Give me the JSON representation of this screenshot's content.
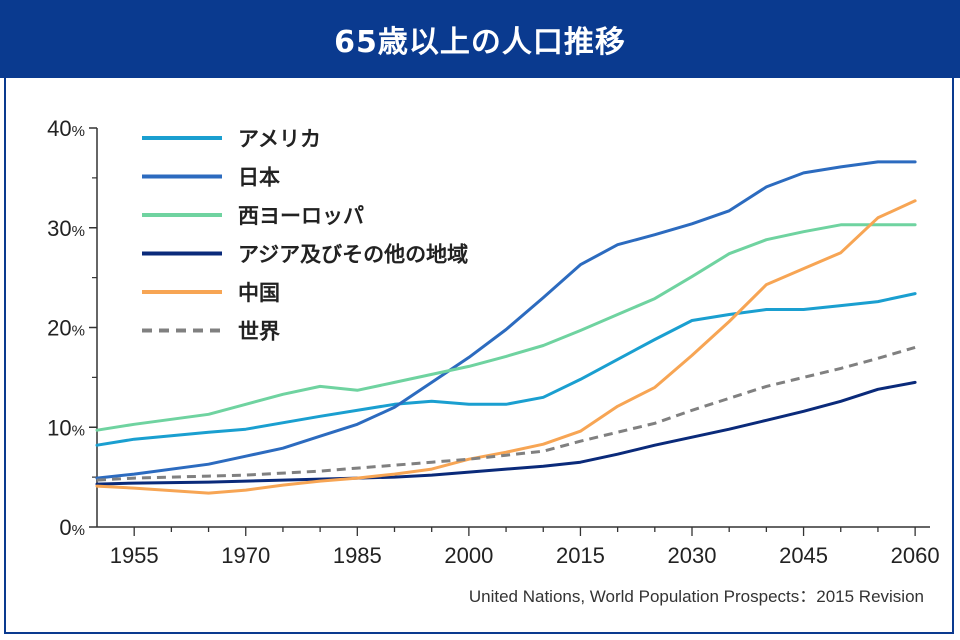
{
  "title": "65歳以上の人口推移",
  "source": "United Nations, World Population Prospects：2015 Revision",
  "chart_data": {
    "type": "line",
    "title": "65歳以上の人口推移",
    "xlabel": "",
    "ylabel": "",
    "x_ticks": [
      1955,
      1970,
      1985,
      2000,
      2015,
      2030,
      2045,
      2060
    ],
    "xlim": [
      1950,
      2062
    ],
    "y_ticks": [
      0,
      10,
      20,
      30,
      40
    ],
    "y_unit": "%",
    "ylim": [
      0,
      40
    ],
    "grid": false,
    "legend_position": "top-left",
    "series": [
      {
        "name": "アメリカ",
        "color": "#1a9fd0",
        "dash": false,
        "points": [
          [
            1950,
            8.2
          ],
          [
            1955,
            8.8
          ],
          [
            1965,
            9.5
          ],
          [
            1970,
            9.8
          ],
          [
            1980,
            11.1
          ],
          [
            1990,
            12.3
          ],
          [
            1995,
            12.6
          ],
          [
            2000,
            12.3
          ],
          [
            2005,
            12.3
          ],
          [
            2010,
            13.0
          ],
          [
            2015,
            14.8
          ],
          [
            2020,
            16.8
          ],
          [
            2025,
            18.8
          ],
          [
            2030,
            20.7
          ],
          [
            2035,
            21.3
          ],
          [
            2040,
            21.8
          ],
          [
            2045,
            21.8
          ],
          [
            2050,
            22.2
          ],
          [
            2055,
            22.6
          ],
          [
            2060,
            23.4
          ]
        ]
      },
      {
        "name": "日本",
        "color": "#2c6bbf",
        "dash": false,
        "points": [
          [
            1950,
            4.9
          ],
          [
            1955,
            5.3
          ],
          [
            1965,
            6.3
          ],
          [
            1970,
            7.1
          ],
          [
            1975,
            7.9
          ],
          [
            1980,
            9.1
          ],
          [
            1985,
            10.3
          ],
          [
            1990,
            12.0
          ],
          [
            1995,
            14.5
          ],
          [
            2000,
            17.0
          ],
          [
            2005,
            19.8
          ],
          [
            2010,
            23.0
          ],
          [
            2015,
            26.3
          ],
          [
            2020,
            28.3
          ],
          [
            2025,
            29.3
          ],
          [
            2030,
            30.4
          ],
          [
            2035,
            31.7
          ],
          [
            2040,
            34.1
          ],
          [
            2045,
            35.5
          ],
          [
            2050,
            36.1
          ],
          [
            2055,
            36.6
          ],
          [
            2060,
            36.6
          ]
        ]
      },
      {
        "name": "西ヨーロッパ",
        "color": "#6fd3a0",
        "dash": false,
        "points": [
          [
            1950,
            9.7
          ],
          [
            1955,
            10.3
          ],
          [
            1965,
            11.3
          ],
          [
            1970,
            12.3
          ],
          [
            1975,
            13.3
          ],
          [
            1980,
            14.1
          ],
          [
            1985,
            13.7
          ],
          [
            1990,
            14.5
          ],
          [
            1995,
            15.3
          ],
          [
            2000,
            16.1
          ],
          [
            2005,
            17.1
          ],
          [
            2010,
            18.2
          ],
          [
            2015,
            19.7
          ],
          [
            2020,
            21.3
          ],
          [
            2025,
            22.9
          ],
          [
            2030,
            25.1
          ],
          [
            2035,
            27.4
          ],
          [
            2040,
            28.8
          ],
          [
            2045,
            29.6
          ],
          [
            2050,
            30.3
          ],
          [
            2055,
            30.3
          ],
          [
            2060,
            30.3
          ]
        ]
      },
      {
        "name": "アジア及びその他の地域",
        "color": "#0a2a7a",
        "dash": false,
        "points": [
          [
            1950,
            4.3
          ],
          [
            1955,
            4.4
          ],
          [
            1965,
            4.5
          ],
          [
            1970,
            4.6
          ],
          [
            1975,
            4.7
          ],
          [
            1980,
            4.8
          ],
          [
            1985,
            4.9
          ],
          [
            1990,
            5.0
          ],
          [
            1995,
            5.2
          ],
          [
            2000,
            5.5
          ],
          [
            2005,
            5.8
          ],
          [
            2010,
            6.1
          ],
          [
            2015,
            6.5
          ],
          [
            2020,
            7.3
          ],
          [
            2025,
            8.2
          ],
          [
            2030,
            9.0
          ],
          [
            2035,
            9.8
          ],
          [
            2040,
            10.7
          ],
          [
            2045,
            11.6
          ],
          [
            2050,
            12.6
          ],
          [
            2055,
            13.8
          ],
          [
            2060,
            14.5
          ]
        ]
      },
      {
        "name": "中国",
        "color": "#f7a554",
        "dash": false,
        "points": [
          [
            1950,
            4.1
          ],
          [
            1955,
            3.9
          ],
          [
            1965,
            3.4
          ],
          [
            1970,
            3.7
          ],
          [
            1975,
            4.2
          ],
          [
            1980,
            4.6
          ],
          [
            1985,
            4.9
          ],
          [
            1990,
            5.3
          ],
          [
            1995,
            5.8
          ],
          [
            2000,
            6.8
          ],
          [
            2005,
            7.5
          ],
          [
            2010,
            8.3
          ],
          [
            2015,
            9.6
          ],
          [
            2020,
            12.1
          ],
          [
            2025,
            14.0
          ],
          [
            2030,
            17.2
          ],
          [
            2035,
            20.6
          ],
          [
            2040,
            24.3
          ],
          [
            2045,
            25.9
          ],
          [
            2050,
            27.5
          ],
          [
            2055,
            31.0
          ],
          [
            2060,
            32.7
          ]
        ]
      },
      {
        "name": "世界",
        "color": "#808080",
        "dash": true,
        "points": [
          [
            1950,
            4.7
          ],
          [
            1955,
            4.9
          ],
          [
            1965,
            5.1
          ],
          [
            1970,
            5.2
          ],
          [
            1975,
            5.4
          ],
          [
            1980,
            5.6
          ],
          [
            1985,
            5.9
          ],
          [
            1990,
            6.2
          ],
          [
            1995,
            6.5
          ],
          [
            2000,
            6.8
          ],
          [
            2005,
            7.2
          ],
          [
            2010,
            7.6
          ],
          [
            2015,
            8.6
          ],
          [
            2020,
            9.5
          ],
          [
            2025,
            10.4
          ],
          [
            2030,
            11.7
          ],
          [
            2035,
            12.9
          ],
          [
            2040,
            14.1
          ],
          [
            2045,
            15.0
          ],
          [
            2050,
            15.9
          ],
          [
            2055,
            16.9
          ],
          [
            2060,
            18.0
          ]
        ]
      }
    ]
  }
}
